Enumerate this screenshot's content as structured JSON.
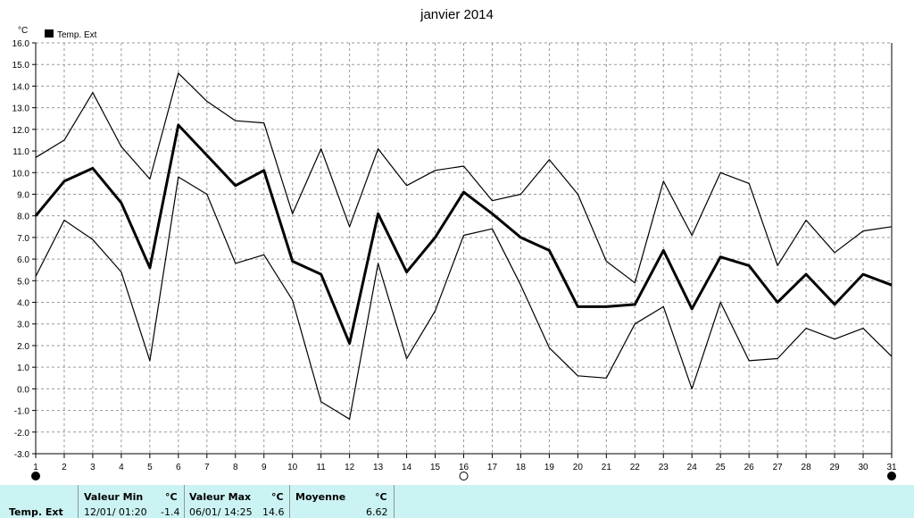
{
  "chart_data": {
    "type": "line",
    "title": "janvier 2014",
    "y_unit": "°C",
    "legend": "Temp. Ext",
    "legend_color": "#000000",
    "ylim": [
      -3.0,
      16.0
    ],
    "y_ticks": [
      "-3.0",
      "-2.0",
      "-1.0",
      "0.0",
      "1.0",
      "2.0",
      "3.0",
      "4.0",
      "5.0",
      "6.0",
      "7.0",
      "8.0",
      "9.0",
      "10.0",
      "11.0",
      "12.0",
      "13.0",
      "14.0",
      "15.0",
      "16.0"
    ],
    "x": [
      1,
      2,
      3,
      4,
      5,
      6,
      7,
      8,
      9,
      10,
      11,
      12,
      13,
      14,
      15,
      16,
      17,
      18,
      19,
      20,
      21,
      22,
      23,
      24,
      25,
      26,
      27,
      28,
      29,
      30,
      31
    ],
    "grid": true,
    "series": [
      {
        "role": "max",
        "stroke": 1.2,
        "values": [
          10.7,
          11.5,
          13.7,
          11.2,
          9.7,
          14.6,
          13.3,
          12.4,
          12.3,
          8.1,
          11.1,
          7.5,
          11.1,
          9.4,
          10.1,
          10.3,
          8.7,
          9.0,
          10.6,
          9.0,
          5.9,
          4.9,
          9.6,
          7.1,
          10.0,
          9.5,
          5.7,
          7.8,
          6.3,
          7.3,
          7.5
        ]
      },
      {
        "role": "mean",
        "stroke": 3,
        "values": [
          8.0,
          9.6,
          10.2,
          8.6,
          5.6,
          12.2,
          10.8,
          9.4,
          10.1,
          5.9,
          5.3,
          2.1,
          8.1,
          5.4,
          7.0,
          9.1,
          8.1,
          7.0,
          6.4,
          3.8,
          3.8,
          3.9,
          6.4,
          3.7,
          6.1,
          5.7,
          4.0,
          5.3,
          3.9,
          5.3,
          4.8
        ]
      },
      {
        "role": "min",
        "stroke": 1.2,
        "values": [
          5.2,
          7.8,
          6.9,
          5.4,
          1.3,
          9.8,
          9.0,
          5.8,
          6.2,
          4.1,
          -0.6,
          -1.4,
          5.8,
          1.4,
          3.6,
          7.1,
          7.4,
          4.8,
          1.9,
          0.6,
          0.5,
          3.0,
          3.8,
          0.0,
          4.0,
          1.3,
          1.4,
          2.8,
          2.3,
          2.8,
          1.5
        ]
      }
    ],
    "moon_phases": [
      {
        "day": 1,
        "phase": "new-moon"
      },
      {
        "day": 16,
        "phase": "full-moon"
      },
      {
        "day": 31,
        "phase": "new-moon"
      }
    ]
  },
  "summary": {
    "row_label": "Temp. Ext",
    "min": {
      "header": "Valeur Min",
      "unit": "°C",
      "when": "12/01/  01:20",
      "value": "-1.4"
    },
    "max": {
      "header": "Valeur Max",
      "unit": "°C",
      "when": "06/01/  14:25",
      "value": "14.6"
    },
    "mean": {
      "header": "Moyenne",
      "unit": "°C",
      "value": "6.62"
    }
  }
}
